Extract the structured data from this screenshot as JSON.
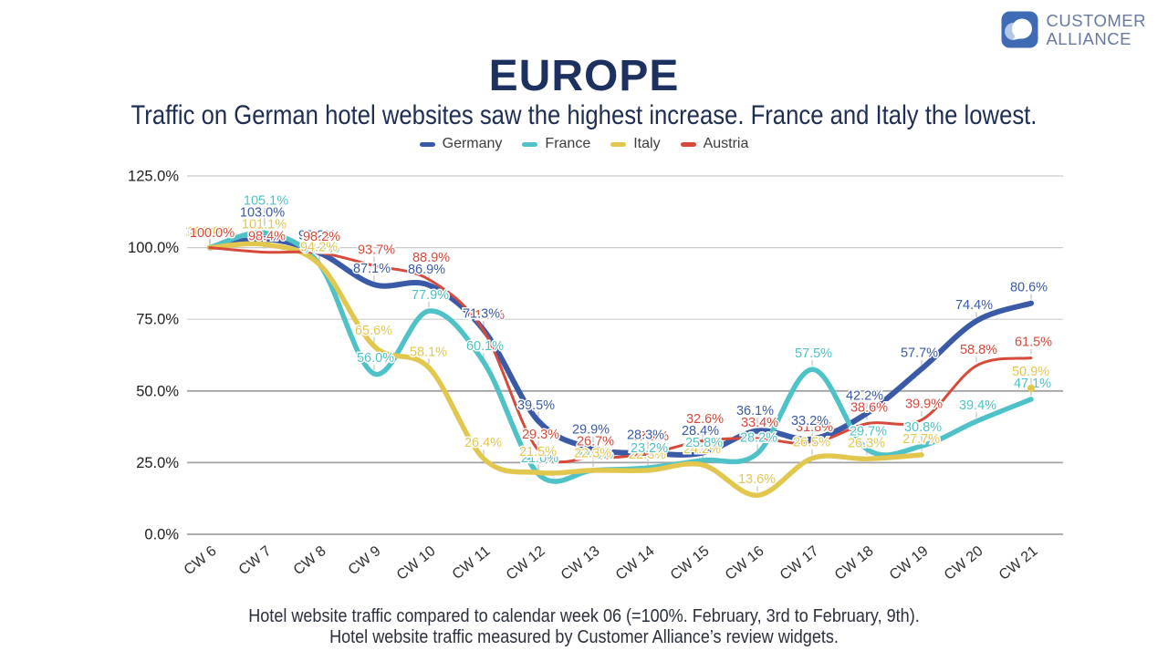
{
  "logo": {
    "line1": "CUSTOMER",
    "line2": "ALLIANCE"
  },
  "title": "EUROPE",
  "subtitle": "Traffic on German hotel websites saw the highest increase. France and Italy the lowest.",
  "footer_line1": "Hotel website traffic compared to calendar week 06 (=100%. February, 3rd to February, 9th).",
  "footer_line2": "Hotel website traffic measured by Customer Alliance’s review widgets.",
  "chart_data": {
    "type": "line",
    "categories": [
      "CW 6",
      "CW 7",
      "CW 8",
      "CW 9",
      "CW 10",
      "CW 11",
      "CW 12",
      "CW 13",
      "CW 14",
      "CW 15",
      "CW 16",
      "CW 17",
      "CW 18",
      "CW 19",
      "CW 20",
      "CW 21"
    ],
    "series": [
      {
        "name": "Germany",
        "color": "#3a59a7",
        "width": 6,
        "values": [
          100.0,
          103.0,
          98.2,
          87.1,
          86.9,
          71.3,
          39.5,
          29.9,
          28.3,
          28.4,
          36.1,
          33.2,
          42.2,
          57.7,
          74.4,
          80.6
        ]
      },
      {
        "name": "France",
        "color": "#4ec2c6",
        "width": 5.5,
        "values": [
          100.0,
          105.1,
          94.2,
          56.0,
          77.9,
          60.1,
          21.0,
          22.3,
          23.2,
          25.8,
          28.2,
          57.5,
          29.7,
          30.8,
          39.4,
          47.1
        ]
      },
      {
        "name": "Italy",
        "color": "#e2c74f",
        "width": 5.5,
        "values": [
          100.0,
          101.1,
          94.2,
          65.6,
          58.1,
          26.4,
          21.5,
          22.3,
          22.3,
          24.2,
          13.6,
          26.5,
          26.3,
          27.7,
          null,
          50.9
        ]
      },
      {
        "name": "Austria",
        "color": "#d74a3b",
        "width": 3,
        "values": [
          100.0,
          98.4,
          98.2,
          93.7,
          88.9,
          71.0,
          29.3,
          26.7,
          28.1,
          32.6,
          33.4,
          31.8,
          38.6,
          39.9,
          58.8,
          61.5
        ]
      }
    ],
    "title": "",
    "xlabel": "",
    "ylabel": "",
    "ylim": [
      0,
      125
    ],
    "yticks": [
      "0.0%",
      "25.0%",
      "50.0%",
      "75.0%",
      "100.0%",
      "125.0%"
    ],
    "grid": true,
    "legend_position": "top"
  }
}
